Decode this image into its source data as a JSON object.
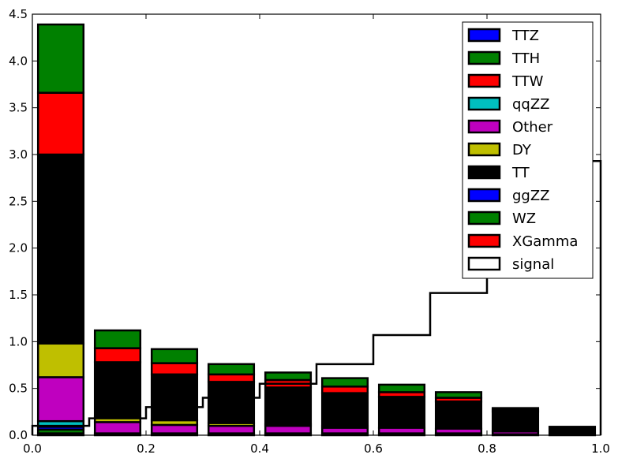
{
  "chart_data": {
    "type": "bar",
    "stacked": true,
    "title": "",
    "xlabel": "",
    "ylabel": "",
    "xlim": [
      0.0,
      1.0
    ],
    "ylim": [
      0.0,
      4.5
    ],
    "grid": false,
    "legend_position": "top-right",
    "x_ticks": [
      "0.0",
      "0.2",
      "0.4",
      "0.6",
      "0.8",
      "1.0"
    ],
    "y_ticks": [
      "0.0",
      "0.5",
      "1.0",
      "1.5",
      "2.0",
      "2.5",
      "3.0",
      "3.5",
      "4.0",
      "4.5"
    ],
    "bin_edges": [
      0.0,
      0.1,
      0.2,
      0.3,
      0.4,
      0.5,
      0.6,
      0.7,
      0.8,
      0.9,
      1.0
    ],
    "bar_width_fraction": 0.8,
    "series": [
      {
        "name": "XGamma",
        "color": "#ff0000",
        "values": [
          0.02,
          0.0,
          0.0,
          0.0,
          0.0,
          0.0,
          0.0,
          0.0,
          0.0,
          0.0
        ]
      },
      {
        "name": "WZ",
        "color": "#008000",
        "values": [
          0.04,
          0.0,
          0.0,
          0.0,
          0.0,
          0.0,
          0.0,
          0.0,
          0.0,
          0.0
        ]
      },
      {
        "name": "ggZZ",
        "color": "#0000ff",
        "values": [
          0.03,
          0.01,
          0.01,
          0.01,
          0.01,
          0.01,
          0.01,
          0.01,
          0.01,
          0.0
        ]
      },
      {
        "name": "qqZZ",
        "color": "#00bfbf",
        "values": [
          0.06,
          0.01,
          0.01,
          0.01,
          0.01,
          0.01,
          0.01,
          0.01,
          0.0,
          0.0
        ]
      },
      {
        "name": "Other",
        "color": "#bf00bf",
        "values": [
          0.47,
          0.12,
          0.09,
          0.08,
          0.08,
          0.06,
          0.06,
          0.05,
          0.03,
          0.0
        ]
      },
      {
        "name": "DY",
        "color": "#bfbf00",
        "values": [
          0.36,
          0.06,
          0.05,
          0.03,
          0.02,
          0.02,
          0.0,
          0.0,
          0.0,
          0.0
        ]
      },
      {
        "name": "TT",
        "color": "#000000",
        "values": [
          2.02,
          0.58,
          0.49,
          0.44,
          0.39,
          0.35,
          0.33,
          0.29,
          0.21,
          0.09
        ]
      },
      {
        "name": "TTW",
        "color": "#ff0000",
        "values": [
          0.66,
          0.15,
          0.12,
          0.08,
          0.08,
          0.07,
          0.05,
          0.04,
          0.02,
          0.0
        ]
      },
      {
        "name": "TTH",
        "color": "#008000",
        "values": [
          0.73,
          0.19,
          0.15,
          0.11,
          0.08,
          0.09,
          0.08,
          0.06,
          0.02,
          0.0
        ]
      },
      {
        "name": "TTZ",
        "color": "#0000ff",
        "values": [
          0.0,
          0.0,
          0.0,
          0.0,
          0.0,
          0.0,
          0.0,
          0.0,
          0.0,
          0.0
        ]
      }
    ],
    "signal": {
      "name": "signal",
      "color": "#000000",
      "type": "step",
      "values": [
        0.1,
        0.18,
        0.3,
        0.4,
        0.55,
        0.76,
        1.07,
        1.52,
        2.28,
        2.93
      ]
    },
    "legend": [
      "TTZ",
      "TTH",
      "TTW",
      "qqZZ",
      "Other",
      "DY",
      "TT",
      "ggZZ",
      "WZ",
      "XGamma",
      "signal"
    ]
  }
}
